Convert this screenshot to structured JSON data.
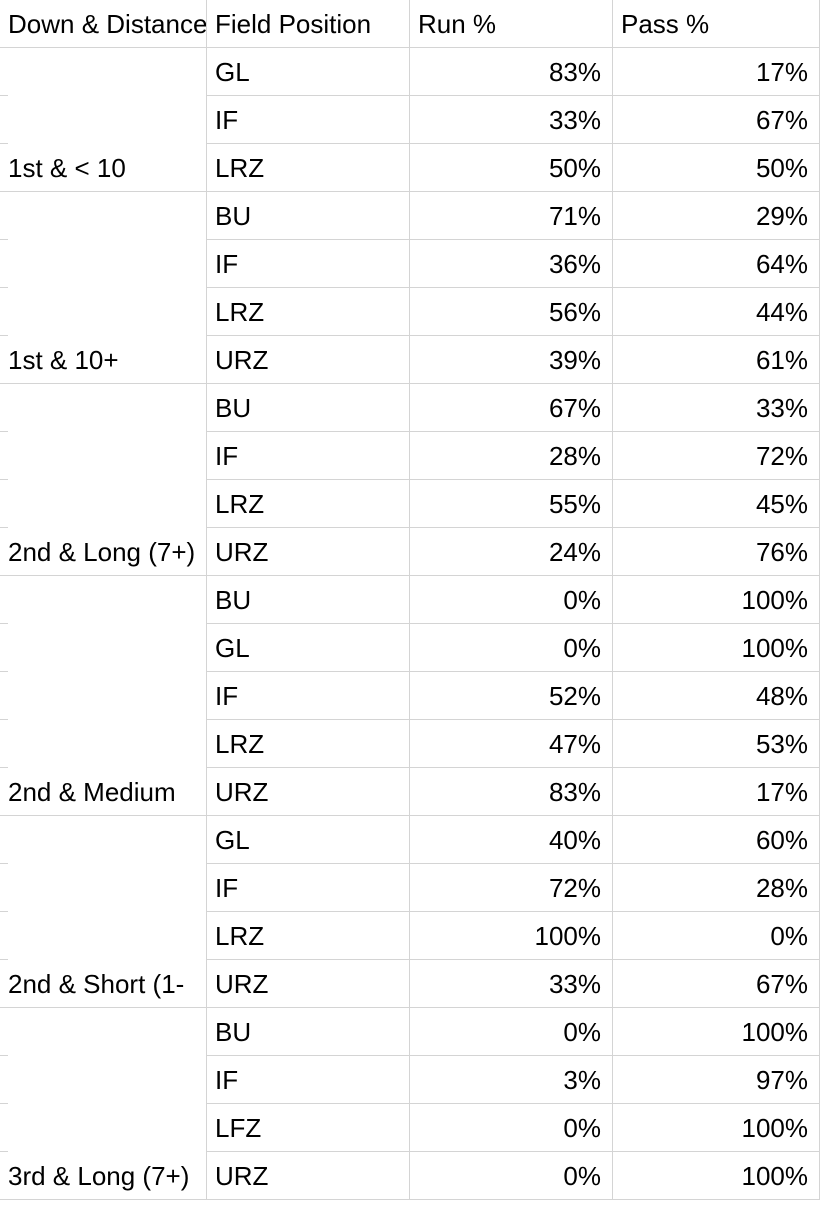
{
  "headers": [
    "Down & Distance",
    "Field Position",
    "Run %",
    "Pass %"
  ],
  "groups": [
    {
      "label": "1st & < 10",
      "rows": [
        {
          "field": "GL",
          "run": "83%",
          "pass": "17%"
        },
        {
          "field": "IF",
          "run": "33%",
          "pass": "67%"
        },
        {
          "field": "LRZ",
          "run": "50%",
          "pass": "50%"
        }
      ]
    },
    {
      "label": "1st & 10+",
      "rows": [
        {
          "field": "BU",
          "run": "71%",
          "pass": "29%"
        },
        {
          "field": "IF",
          "run": "36%",
          "pass": "64%"
        },
        {
          "field": "LRZ",
          "run": "56%",
          "pass": "44%"
        },
        {
          "field": "URZ",
          "run": "39%",
          "pass": "61%"
        }
      ]
    },
    {
      "label": "2nd & Long (7+)",
      "rows": [
        {
          "field": "BU",
          "run": "67%",
          "pass": "33%"
        },
        {
          "field": "IF",
          "run": "28%",
          "pass": "72%"
        },
        {
          "field": "LRZ",
          "run": "55%",
          "pass": "45%"
        },
        {
          "field": "URZ",
          "run": "24%",
          "pass": "76%"
        }
      ]
    },
    {
      "label": "2nd & Medium",
      "rows": [
        {
          "field": "BU",
          "run": "0%",
          "pass": "100%"
        },
        {
          "field": "GL",
          "run": "0%",
          "pass": "100%"
        },
        {
          "field": "IF",
          "run": "52%",
          "pass": "48%"
        },
        {
          "field": "LRZ",
          "run": "47%",
          "pass": "53%"
        },
        {
          "field": "URZ",
          "run": "83%",
          "pass": "17%"
        }
      ]
    },
    {
      "label": "2nd & Short (1-",
      "rows": [
        {
          "field": "GL",
          "run": "40%",
          "pass": "60%"
        },
        {
          "field": "IF",
          "run": "72%",
          "pass": "28%"
        },
        {
          "field": "LRZ",
          "run": "100%",
          "pass": "0%"
        },
        {
          "field": "URZ",
          "run": "33%",
          "pass": "67%"
        }
      ]
    },
    {
      "label": "3rd & Long (7+)",
      "rows": [
        {
          "field": "BU",
          "run": "0%",
          "pass": "100%"
        },
        {
          "field": "IF",
          "run": "3%",
          "pass": "97%"
        },
        {
          "field": "LFZ",
          "run": "0%",
          "pass": "100%"
        },
        {
          "field": "URZ",
          "run": "0%",
          "pass": "100%"
        }
      ]
    }
  ]
}
